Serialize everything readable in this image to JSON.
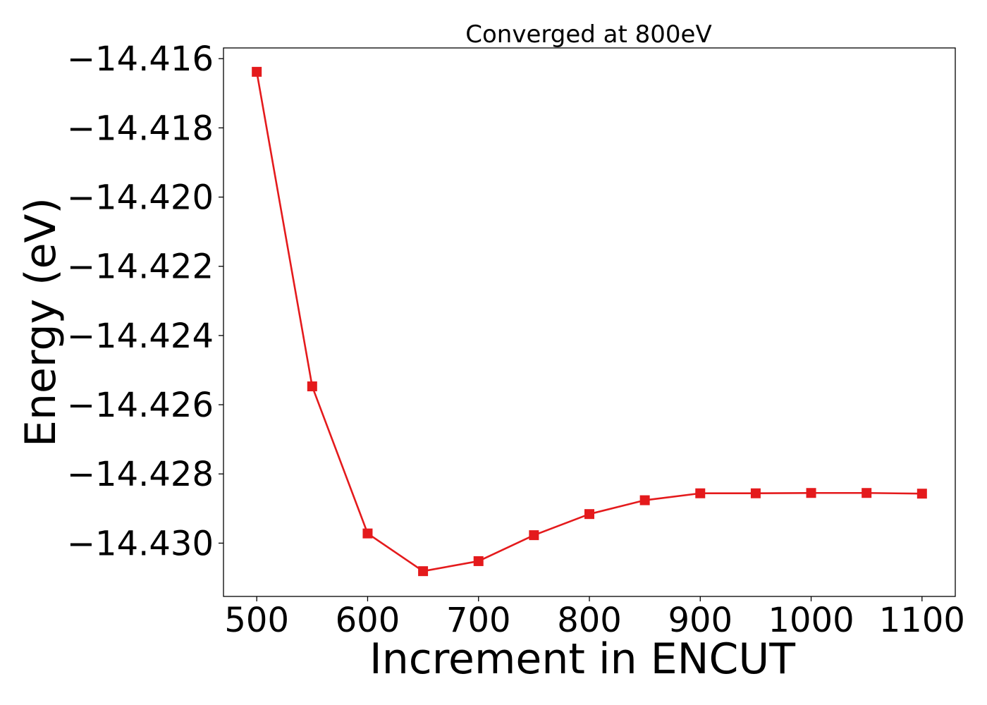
{
  "chart_data": {
    "type": "line",
    "title": "Converged at 800eV",
    "xlabel": "Increment in ENCUT",
    "ylabel": "Energy (eV)",
    "x": [
      500,
      550,
      600,
      650,
      700,
      750,
      800,
      850,
      900,
      950,
      1000,
      1050,
      1100
    ],
    "series": [
      {
        "values": [
          -14.41638,
          -14.42547,
          -14.42972,
          -14.43081,
          -14.43052,
          -14.42977,
          -14.42916,
          -14.42876,
          -14.42856,
          -14.42856,
          -14.42855,
          -14.42855,
          -14.42857
        ],
        "color": "#e41a1c",
        "marker": "square"
      }
    ],
    "xticks": [
      500,
      600,
      700,
      800,
      900,
      1000,
      1100
    ],
    "xtick_labels": [
      "500",
      "600",
      "700",
      "800",
      "900",
      "1000",
      "1100"
    ],
    "yticks": [
      -14.416,
      -14.418,
      -14.42,
      -14.422,
      -14.424,
      -14.426,
      -14.428,
      -14.43
    ],
    "ytick_labels": [
      "−14.416",
      "−14.418",
      "−14.420",
      "−14.422",
      "−14.424",
      "−14.426",
      "−14.428",
      "−14.430"
    ],
    "xlim": [
      470,
      1130
    ],
    "ylim": [
      -14.43154,
      -14.41569
    ],
    "grid": false,
    "legend": "none"
  }
}
